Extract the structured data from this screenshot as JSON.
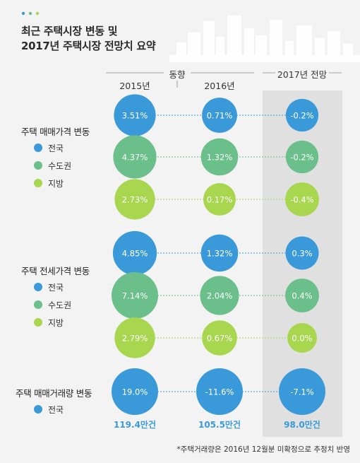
{
  "title_lines": [
    "최근 주택시장 변동 및",
    "2017년 주택시장 전망치 요약"
  ],
  "columns": {
    "trend_label": "동향",
    "col_2015": "2015년",
    "col_2016": "2016년",
    "col_2017": "2017년 전망"
  },
  "colors": {
    "nationwide": "#3a9ad9",
    "capital": "#6abf8a",
    "provinces": "#a8d64e",
    "forecast_band": "#e0e0e0",
    "volume_text": "#3a9ad9"
  },
  "groups": {
    "sale_price": {
      "title": "주택 매매가격 변동",
      "legend": [
        "전국",
        "수도권",
        "지방"
      ]
    },
    "jeonse_price": {
      "title": "주택 전세가격 변동",
      "legend": [
        "전국",
        "수도권",
        "지방"
      ]
    },
    "volume": {
      "title": "주택 매매거래량 변동",
      "legend": [
        "전국"
      ]
    }
  },
  "chart_data": {
    "type": "scatter",
    "x": [
      "2015년",
      "2016년",
      "2017년 전망"
    ],
    "series": [
      {
        "group": "주택 매매가격 변동",
        "name": "전국",
        "color": "#3a9ad9",
        "values": [
          3.51,
          0.71,
          -0.2
        ],
        "labels": [
          "3.51%",
          "0.71%",
          "-0.2%"
        ]
      },
      {
        "group": "주택 매매가격 변동",
        "name": "수도권",
        "color": "#6abf8a",
        "values": [
          4.37,
          1.32,
          -0.2
        ],
        "labels": [
          "4.37%",
          "1.32%",
          "-0.2%"
        ]
      },
      {
        "group": "주택 매매가격 변동",
        "name": "지방",
        "color": "#a8d64e",
        "values": [
          2.73,
          0.17,
          -0.4
        ],
        "labels": [
          "2.73%",
          "0.17%",
          "-0.4%"
        ]
      },
      {
        "group": "주택 전세가격 변동",
        "name": "전국",
        "color": "#3a9ad9",
        "values": [
          4.85,
          1.32,
          0.3
        ],
        "labels": [
          "4.85%",
          "1.32%",
          "0.3%"
        ]
      },
      {
        "group": "주택 전세가격 변동",
        "name": "수도권",
        "color": "#6abf8a",
        "values": [
          7.14,
          2.04,
          0.4
        ],
        "labels": [
          "7.14%",
          "2.04%",
          "0.4%"
        ]
      },
      {
        "group": "주택 전세가격 변동",
        "name": "지방",
        "color": "#a8d64e",
        "values": [
          2.79,
          0.67,
          0.0
        ],
        "labels": [
          "2.79%",
          "0.67%",
          "0.0%"
        ]
      },
      {
        "group": "주택 매매거래량 변동",
        "name": "전국",
        "color": "#3a9ad9",
        "values": [
          19.0,
          -11.6,
          -7.1
        ],
        "labels": [
          "19.0%",
          "-11.6%",
          "-7.1%"
        ],
        "volumes": [
          "119.4만건",
          "105.5만건",
          "98.0만건"
        ]
      }
    ]
  },
  "footnote": "*주택거래량은 2016년 12월분 미확정으로 추정치 반영"
}
